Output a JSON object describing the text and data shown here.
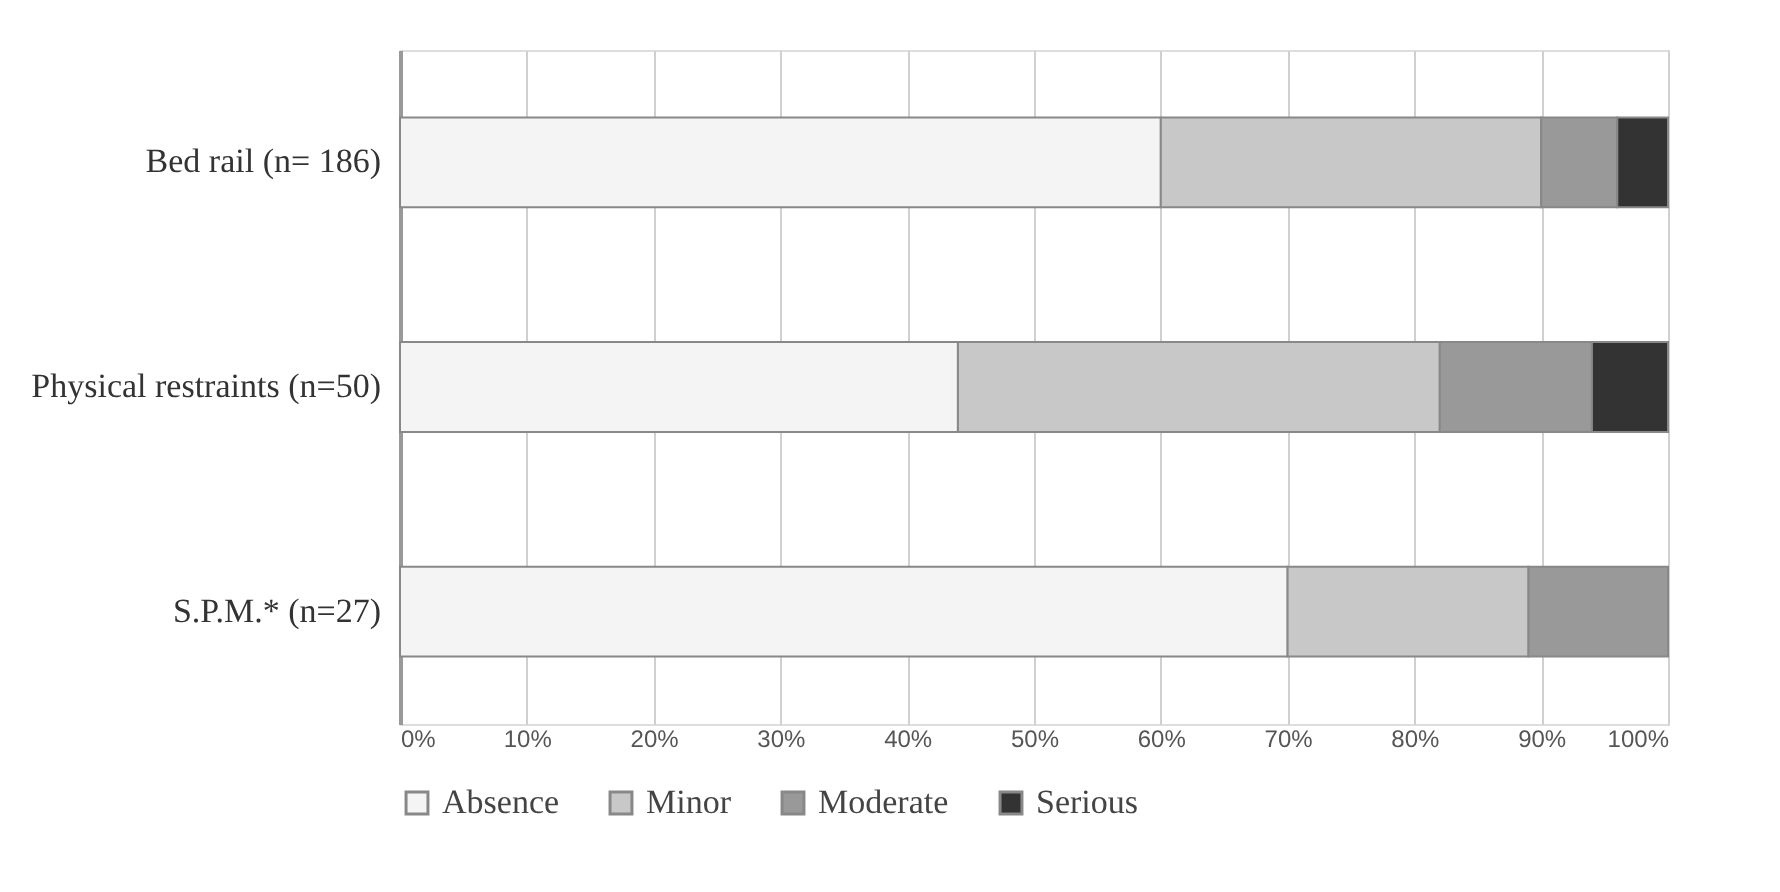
{
  "chart_data": {
    "type": "bar",
    "orientation": "horizontal",
    "stacked": true,
    "categories": [
      "Bed rail (n= 186)",
      "Physical restraints (n=50)",
      "S.P.M.* (n=27)"
    ],
    "series": [
      {
        "name": "Absence",
        "color": "#f4f4f4",
        "values": [
          60,
          44,
          70
        ]
      },
      {
        "name": "Minor",
        "color": "#c8c8c8",
        "values": [
          30,
          38,
          19
        ]
      },
      {
        "name": "Moderate",
        "color": "#999999",
        "values": [
          6,
          12,
          11
        ]
      },
      {
        "name": "Serious",
        "color": "#333333",
        "values": [
          4,
          6,
          null
        ]
      }
    ],
    "xlim": [
      0,
      100
    ],
    "xticks": [
      {
        "value": 0,
        "label": "0%"
      },
      {
        "value": 10,
        "label": "10%"
      },
      {
        "value": 20,
        "label": "20%"
      },
      {
        "value": 30,
        "label": "30%"
      },
      {
        "value": 40,
        "label": "40%"
      },
      {
        "value": 50,
        "label": "50%"
      },
      {
        "value": 60,
        "label": "60%"
      },
      {
        "value": 70,
        "label": "70%"
      },
      {
        "value": 80,
        "label": "80%"
      },
      {
        "value": 90,
        "label": "90%"
      },
      {
        "value": 100,
        "label": "100%"
      }
    ],
    "grid": "x",
    "legend": "bottom"
  }
}
